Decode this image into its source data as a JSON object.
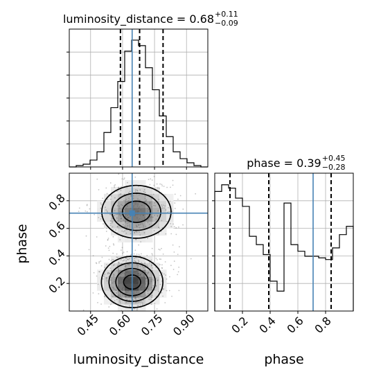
{
  "chart_data": [
    {
      "type": "histogram",
      "panel": "luminosity_distance-marginal",
      "title_base": "luminosity_distance = 0.68",
      "title_sup": "+0.11",
      "title_sub": "−0.09",
      "xlim": [
        0.35,
        1.0
      ],
      "bin_edges": [
        0.35,
        0.3825,
        0.415,
        0.4475,
        0.48,
        0.5125,
        0.545,
        0.5775,
        0.61,
        0.6425,
        0.675,
        0.7075,
        0.74,
        0.7725,
        0.805,
        0.8375,
        0.87,
        0.9025,
        0.935,
        0.9675,
        1.0
      ],
      "counts": [
        0,
        1,
        2,
        5,
        11,
        25,
        43,
        62,
        84,
        92,
        88,
        72,
        56,
        37,
        22,
        11,
        6,
        3,
        1,
        0
      ],
      "ymax": 100,
      "quantiles": [
        0.59,
        0.68,
        0.79
      ],
      "truth": 0.645
    },
    {
      "type": "histogram",
      "panel": "phase-marginal",
      "title_base": "phase = 0.39",
      "title_sup": "+0.45",
      "title_sub": "−0.28",
      "xlim": [
        0.0,
        1.0
      ],
      "xticks": [
        "0.2",
        "0.4",
        "0.6",
        "0.8"
      ],
      "xlabel": "phase",
      "bin_edges": [
        0.0,
        0.05,
        0.1,
        0.15,
        0.2,
        0.25,
        0.3,
        0.35,
        0.4,
        0.45,
        0.5,
        0.55,
        0.6,
        0.65,
        0.7,
        0.75,
        0.8,
        0.85,
        0.9,
        0.95,
        1.0
      ],
      "counts": [
        72,
        76,
        74,
        68,
        63,
        45,
        40,
        34,
        18,
        12,
        65,
        40,
        36,
        33,
        33,
        32,
        31,
        38,
        46,
        51
      ],
      "ymax": 83,
      "quantiles": [
        0.11,
        0.39,
        0.84
      ],
      "truth": 0.71
    },
    {
      "type": "density-contour",
      "panel": "phase-vs-luminosity_distance",
      "xlabel": "luminosity_distance",
      "ylabel": "phase",
      "xlim": [
        0.35,
        1.0
      ],
      "ylim": [
        0.0,
        1.0
      ],
      "xticks": [
        "0.45",
        "0.60",
        "0.75",
        "0.90"
      ],
      "yticks": [
        "0.2",
        "0.4",
        "0.6",
        "0.8"
      ],
      "truth": [
        0.645,
        0.71
      ],
      "modes": [
        {
          "cx": 0.665,
          "cy": 0.72,
          "sx": 0.085,
          "sy": 0.1,
          "w": 1.0
        },
        {
          "cx": 0.645,
          "cy": 0.21,
          "sx": 0.07,
          "sy": 0.09,
          "w": 1.35
        }
      ],
      "contour_levels": [
        0.12,
        0.3,
        0.55,
        0.85
      ]
    }
  ]
}
